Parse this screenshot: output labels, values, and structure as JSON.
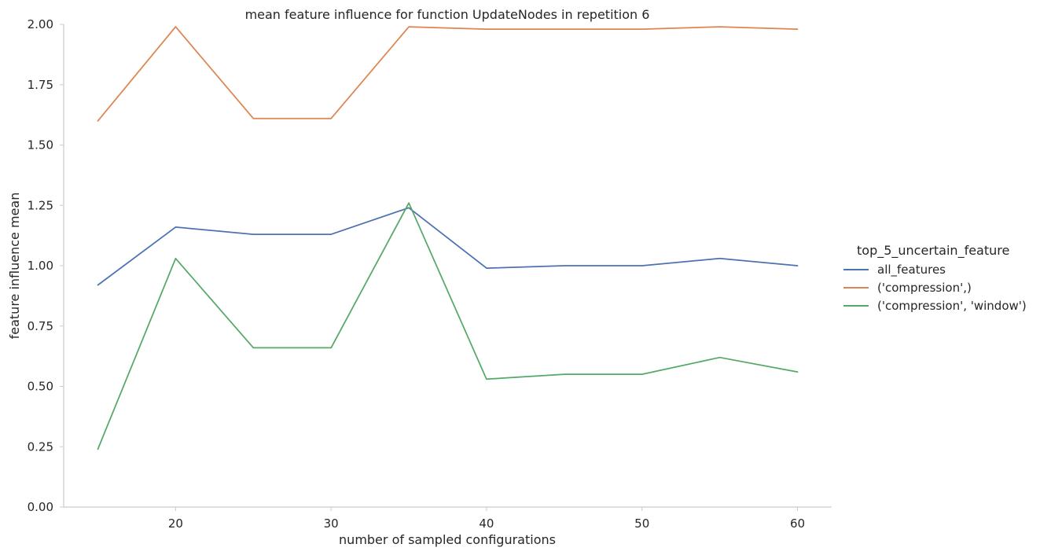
{
  "chart_data": {
    "type": "line",
    "title": "mean feature influence for function UpdateNodes in repetition 6",
    "xlabel": "number of sampled configurations",
    "ylabel": "feature influence mean",
    "xlim": [
      12.8,
      62.2
    ],
    "ylim": [
      0,
      2.0
    ],
    "xticks": [
      20,
      30,
      40,
      50,
      60
    ],
    "yticks": [
      0.0,
      0.25,
      0.5,
      0.75,
      1.0,
      1.25,
      1.5,
      1.75,
      2.0
    ],
    "ytick_labels": [
      "0.00",
      "0.25",
      "0.50",
      "0.75",
      "1.00",
      "1.25",
      "1.50",
      "1.75",
      "2.00"
    ],
    "grid": false,
    "legend": {
      "title": "top_5_uncertain_feature",
      "placement": "right"
    },
    "x": [
      15,
      20,
      25,
      30,
      35,
      40,
      45,
      50,
      55,
      60
    ],
    "series": [
      {
        "name": "all_features",
        "color": "#4c72b0",
        "values": [
          0.92,
          1.16,
          1.13,
          1.13,
          1.24,
          0.99,
          1.0,
          1.0,
          1.03,
          1.0
        ]
      },
      {
        "name": "('compression',)",
        "color": "#dd8452",
        "values": [
          1.6,
          1.99,
          1.61,
          1.61,
          1.99,
          1.98,
          1.98,
          1.98,
          1.99,
          1.98
        ]
      },
      {
        "name": "('compression', 'window')",
        "color": "#55a868",
        "values": [
          0.24,
          1.03,
          0.66,
          0.66,
          1.26,
          0.53,
          0.55,
          0.55,
          0.62,
          0.56
        ]
      }
    ]
  }
}
